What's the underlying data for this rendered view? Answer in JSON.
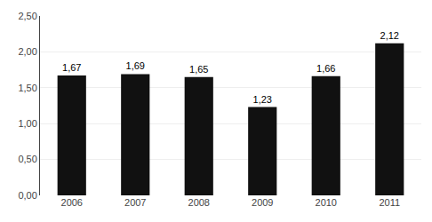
{
  "chart_data": {
    "type": "bar",
    "categories": [
      "2006",
      "2007",
      "2008",
      "2009",
      "2010",
      "2011"
    ],
    "values": [
      1.67,
      1.69,
      1.65,
      1.23,
      1.66,
      2.12
    ],
    "value_labels": [
      "1,67",
      "1,69",
      "1,65",
      "1,23",
      "1,66",
      "2,12"
    ],
    "color": "#111111",
    "ylim": [
      0,
      2.5
    ],
    "yticks": [
      {
        "value": 0,
        "label": "0,00"
      },
      {
        "value": 0.5,
        "label": "0,50"
      },
      {
        "value": 1,
        "label": "1,00"
      },
      {
        "value": 1.5,
        "label": "1,50"
      },
      {
        "value": 2,
        "label": "2,00"
      },
      {
        "value": 2.5,
        "label": "2,50"
      }
    ],
    "grid": true,
    "data_labels": true
  }
}
